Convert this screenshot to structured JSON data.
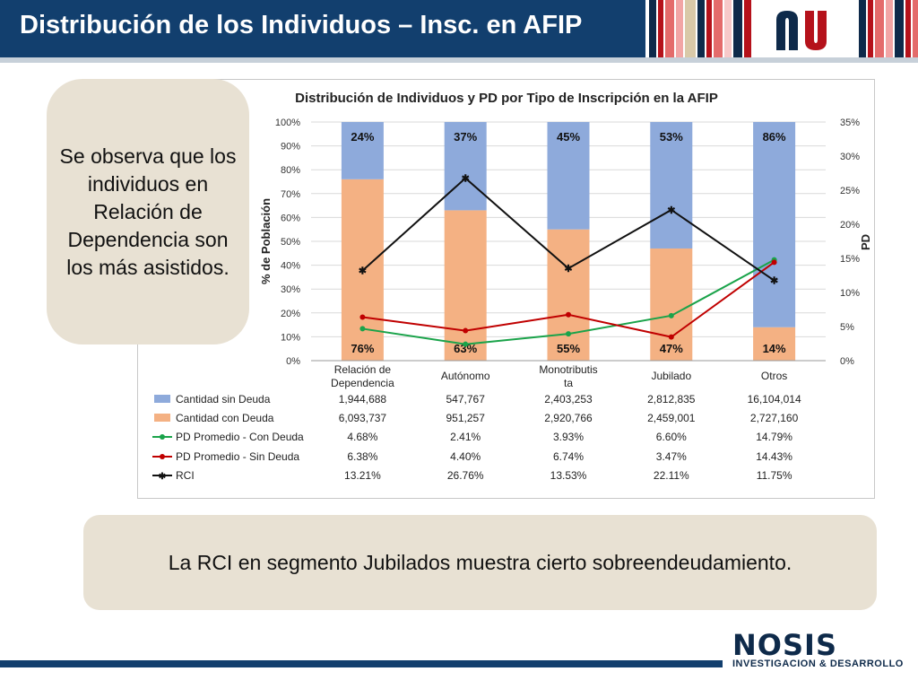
{
  "slide": {
    "title": "Distribución de los Individuos – Insc. en AFIP",
    "callout": "Se observa que los individuos en Relación de Dependencia son los más asistidos.",
    "conclusion": "La RCI en segmento Jubilados muestra cierto sobreendeudamiento."
  },
  "brand": {
    "name": "NOSIS",
    "tagline": "INVESTIGACION & DESARROLLO"
  },
  "colors": {
    "title_bar": "#123f6e",
    "bar_sin_deuda": "#8eaadb",
    "bar_con_deuda": "#f4b183",
    "line_con_deuda": "#1aa34a",
    "line_sin_deuda": "#c00000",
    "line_rci": "#111111"
  },
  "chart_data": {
    "type": "bar",
    "title": "Distribución de Individuos y PD por Tipo de Inscripción en la AFIP",
    "ylabel": "% de Población",
    "y2label": "PD",
    "ylim": [
      0,
      100
    ],
    "y2lim": [
      0,
      35
    ],
    "yticks": [
      "0%",
      "10%",
      "20%",
      "30%",
      "40%",
      "50%",
      "60%",
      "70%",
      "80%",
      "90%",
      "100%"
    ],
    "y2ticks": [
      "0%",
      "5%",
      "10%",
      "15%",
      "20%",
      "25%",
      "30%",
      "35%"
    ],
    "categories": [
      [
        "Relación de",
        "Dependencia"
      ],
      [
        "Autónomo"
      ],
      [
        "Monotributis",
        "ta"
      ],
      [
        "Jubilado"
      ],
      [
        "Otros"
      ]
    ],
    "stacked_percent": {
      "con_deuda": [
        76,
        63,
        55,
        47,
        14
      ],
      "sin_deuda": [
        24,
        37,
        45,
        53,
        86
      ],
      "labels_con_deuda": [
        "76%",
        "63%",
        "55%",
        "47%",
        "14%"
      ],
      "labels_sin_deuda": [
        "24%",
        "37%",
        "45%",
        "53%",
        "86%"
      ]
    },
    "lines": [
      {
        "name": "PD Promedio - Con Deuda",
        "values": [
          4.68,
          2.41,
          3.93,
          6.6,
          14.79
        ]
      },
      {
        "name": "PD Promedio - Sin Deuda",
        "values": [
          6.38,
          4.4,
          6.74,
          3.47,
          14.43
        ]
      },
      {
        "name": "RCI",
        "values": [
          13.21,
          26.76,
          13.53,
          22.11,
          11.75
        ]
      }
    ],
    "table": [
      {
        "name": "Cantidad sin Deuda",
        "values": [
          "1,944,688",
          "547,767",
          "2,403,253",
          "2,812,835",
          "16,104,014"
        ]
      },
      {
        "name": "Cantidad con Deuda",
        "values": [
          "6,093,737",
          "951,257",
          "2,920,766",
          "2,459,001",
          "2,727,160"
        ]
      },
      {
        "name": "PD Promedio - Con Deuda",
        "values": [
          "4.68%",
          "2.41%",
          "3.93%",
          "6.60%",
          "14.79%"
        ]
      },
      {
        "name": "PD Promedio - Sin Deuda",
        "values": [
          "6.38%",
          "4.40%",
          "6.74%",
          "3.47%",
          "14.43%"
        ]
      },
      {
        "name": "RCI",
        "values": [
          "13.21%",
          "26.76%",
          "13.53%",
          "22.11%",
          "11.75%"
        ]
      }
    ]
  }
}
